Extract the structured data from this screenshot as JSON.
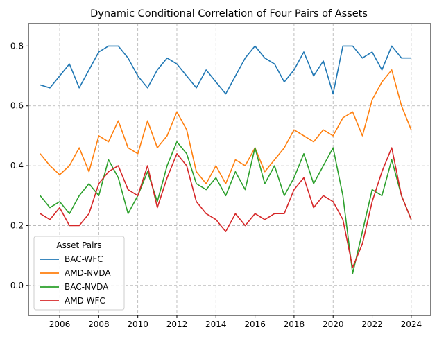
{
  "chart_data": {
    "type": "line",
    "title": "Dynamic Conditional Correlation of Four Pairs of Assets",
    "xlabel": "",
    "ylabel": "",
    "xlim": [
      2004.4,
      2025.0
    ],
    "ylim": [
      -0.1,
      0.875
    ],
    "x_ticks": [
      2006,
      2008,
      2010,
      2012,
      2014,
      2016,
      2018,
      2020,
      2022,
      2024
    ],
    "y_ticks": [
      0.0,
      0.2,
      0.4,
      0.6,
      0.8
    ],
    "grid": true,
    "legend": {
      "title": "Asset Pairs",
      "placement": "lower-left"
    },
    "x": [
      2005.0,
      2005.5,
      2006.0,
      2006.5,
      2007.0,
      2007.5,
      2008.0,
      2008.5,
      2009.0,
      2009.5,
      2010.0,
      2010.5,
      2011.0,
      2011.5,
      2012.0,
      2012.5,
      2013.0,
      2013.5,
      2014.0,
      2014.5,
      2015.0,
      2015.5,
      2016.0,
      2016.5,
      2017.0,
      2017.5,
      2018.0,
      2018.5,
      2019.0,
      2019.5,
      2020.0,
      2020.5,
      2021.0,
      2021.5,
      2022.0,
      2022.5,
      2023.0,
      2023.5,
      2024.0
    ],
    "series": [
      {
        "name": "BAC-WFC",
        "color": "#1f77b4",
        "values": [
          0.67,
          0.66,
          0.7,
          0.74,
          0.66,
          0.72,
          0.78,
          0.8,
          0.8,
          0.76,
          0.7,
          0.66,
          0.72,
          0.76,
          0.74,
          0.7,
          0.66,
          0.72,
          0.68,
          0.64,
          0.7,
          0.76,
          0.8,
          0.76,
          0.74,
          0.68,
          0.72,
          0.78,
          0.7,
          0.75,
          0.64,
          0.8,
          0.8,
          0.76,
          0.78,
          0.72,
          0.8,
          0.76,
          0.76
        ]
      },
      {
        "name": "AMD-NVDA",
        "color": "#ff7f0e",
        "values": [
          0.44,
          0.4,
          0.37,
          0.4,
          0.46,
          0.38,
          0.5,
          0.48,
          0.55,
          0.46,
          0.44,
          0.55,
          0.46,
          0.5,
          0.58,
          0.52,
          0.38,
          0.34,
          0.4,
          0.34,
          0.42,
          0.4,
          0.46,
          0.38,
          0.42,
          0.46,
          0.52,
          0.5,
          0.48,
          0.52,
          0.5,
          0.56,
          0.58,
          0.5,
          0.62,
          0.68,
          0.72,
          0.6,
          0.52
        ]
      },
      {
        "name": "BAC-NVDA",
        "color": "#2ca02c",
        "values": [
          0.3,
          0.26,
          0.28,
          0.24,
          0.3,
          0.34,
          0.3,
          0.42,
          0.36,
          0.24,
          0.3,
          0.38,
          0.28,
          0.4,
          0.48,
          0.44,
          0.34,
          0.32,
          0.36,
          0.3,
          0.38,
          0.32,
          0.46,
          0.34,
          0.4,
          0.3,
          0.36,
          0.44,
          0.34,
          0.4,
          0.46,
          0.3,
          0.04,
          0.18,
          0.32,
          0.3,
          0.42,
          0.3,
          0.22
        ]
      },
      {
        "name": "AMD-WFC",
        "color": "#d62728",
        "values": [
          0.24,
          0.22,
          0.26,
          0.2,
          0.2,
          0.24,
          0.34,
          0.38,
          0.4,
          0.32,
          0.3,
          0.4,
          0.26,
          0.36,
          0.44,
          0.4,
          0.28,
          0.24,
          0.22,
          0.18,
          0.24,
          0.2,
          0.24,
          0.22,
          0.24,
          0.24,
          0.32,
          0.36,
          0.26,
          0.3,
          0.28,
          0.22,
          0.06,
          0.14,
          0.28,
          0.38,
          0.46,
          0.3,
          0.22
        ]
      }
    ]
  }
}
